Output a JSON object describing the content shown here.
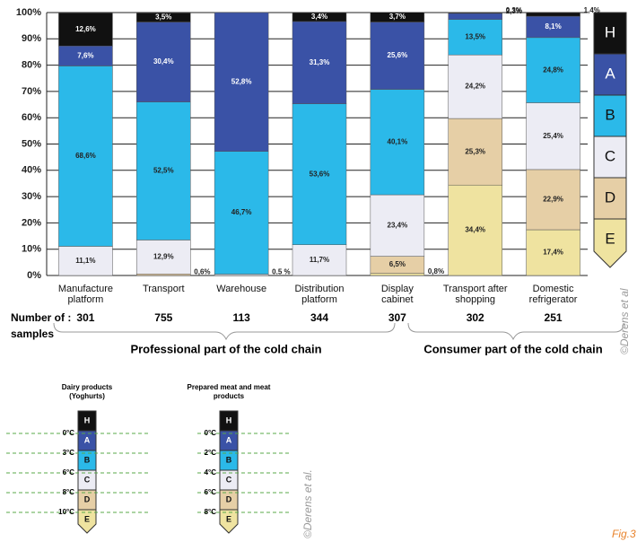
{
  "chart_data": {
    "type": "stacked_bar",
    "categories": [
      "Manufacture platform",
      "Transport",
      "Warehouse",
      "Distribution platform",
      "Display cabinet",
      "Transport after shopping",
      "Domestic refrigerator"
    ],
    "series": [
      {
        "name": "E",
        "color": "#efe3a0",
        "values": [
          0,
          0,
          0,
          0,
          0.8,
          34.4,
          17.4
        ],
        "value_labels": [
          null,
          null,
          null,
          null,
          "0,8%",
          "34,4%",
          "17,4%"
        ]
      },
      {
        "name": "D",
        "color": "#e6cfa6",
        "values": [
          0,
          0.6,
          0,
          0,
          6.5,
          25.3,
          22.9
        ],
        "value_labels": [
          null,
          "0,6%",
          null,
          null,
          "6,5%",
          "25,3%",
          "22,9%"
        ]
      },
      {
        "name": "C",
        "color": "#ececf4",
        "values": [
          11.1,
          12.9,
          0.5,
          11.7,
          23.4,
          24.2,
          25.4
        ],
        "value_labels": [
          "11,1%",
          "12,9%",
          "0.5 %",
          "11,7%",
          "23,4%",
          "24,2%",
          "25,4%"
        ]
      },
      {
        "name": "B",
        "color": "#2bb9e9",
        "values": [
          68.6,
          52.5,
          46.7,
          53.6,
          40.1,
          13.5,
          24.8
        ],
        "value_labels": [
          "68,6%",
          "52,5%",
          "46,7%",
          "53,6%",
          "40,1%",
          "13,5%",
          "24,8%"
        ]
      },
      {
        "name": "A",
        "color": "#3a52a6",
        "values": [
          7.6,
          30.4,
          52.8,
          31.3,
          25.6,
          2.3,
          8.1
        ],
        "value_labels": [
          "7,6%",
          "30,4%",
          "52,8%",
          "31,3%",
          "25,6%",
          "2,3%",
          "8,1%"
        ]
      },
      {
        "name": "H",
        "color": "#111111",
        "values": [
          12.6,
          3.5,
          0,
          3.4,
          3.7,
          0.3,
          1.4
        ],
        "value_labels": [
          "12,6%",
          "3,5%",
          null,
          "3,4%",
          "3,7%",
          "0,3%",
          "1,4%"
        ]
      }
    ],
    "ylim": [
      0,
      100
    ],
    "yticks": [
      {
        "value": 0,
        "label": "0%"
      },
      {
        "value": 10,
        "label": "10%"
      },
      {
        "value": 20,
        "label": "20%"
      },
      {
        "value": 30,
        "label": "30%"
      },
      {
        "value": 40,
        "label": "40%"
      },
      {
        "value": 50,
        "label": "50%"
      },
      {
        "value": 60,
        "label": "60%"
      },
      {
        "value": 70,
        "label": "70%"
      },
      {
        "value": 80,
        "label": "80%"
      },
      {
        "value": 90,
        "label": "90%"
      },
      {
        "value": 100,
        "label": "100%"
      }
    ],
    "grid": true,
    "samples_label": "Number of :",
    "samples_label_2": "samples",
    "samples": [
      301,
      755,
      113,
      344,
      307,
      302,
      251
    ],
    "groups": [
      "Professional part of the cold chain",
      "Consumer part of the cold chain"
    ],
    "credit": "©Derens et al"
  },
  "scales": {
    "dairy": {
      "title": "Dairy products (Yoghurts)",
      "temps": [
        "0°C",
        "3°C",
        "6°C",
        "8°C",
        "10°C"
      ]
    },
    "meat": {
      "title": "Prepared meat and meat products",
      "temps": [
        "0°C",
        "2°C",
        "4°C",
        "6°C",
        "8°C"
      ]
    },
    "credit": "©Derens et al."
  },
  "figure_label": "Fig.3"
}
